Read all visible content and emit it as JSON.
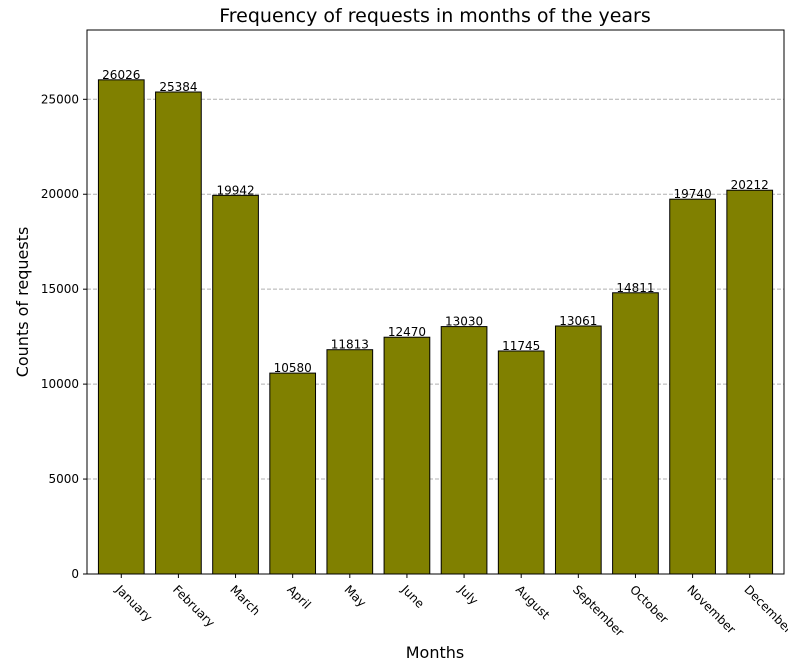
{
  "chart_data": {
    "type": "bar",
    "title": "Frequency of requests in months of the years",
    "xlabel": "Months",
    "ylabel": "Counts of requests",
    "categories": [
      "January",
      "February",
      "March",
      "April",
      "May",
      "June",
      "July",
      "August",
      "September",
      "October",
      "November",
      "December"
    ],
    "values": [
      26026,
      25384,
      19942,
      10580,
      11813,
      12470,
      13030,
      11745,
      13061,
      14811,
      19740,
      20212
    ],
    "data_labels": [
      "26026",
      "25384",
      "19942",
      "10580",
      "11813",
      "12470",
      "13030",
      "11745",
      "13061",
      "14811",
      "19740",
      "20212"
    ],
    "yticks": [
      0,
      5000,
      10000,
      15000,
      20000,
      25000
    ],
    "ytick_labels": [
      "0",
      "5000",
      "10000",
      "15000",
      "20000",
      "25000"
    ],
    "ylim": [
      0,
      28650
    ],
    "grid": "y-dashed",
    "bar_color": "#808000",
    "bar_edge_color": "#000000",
    "grid_color": "#b0b0b0"
  }
}
